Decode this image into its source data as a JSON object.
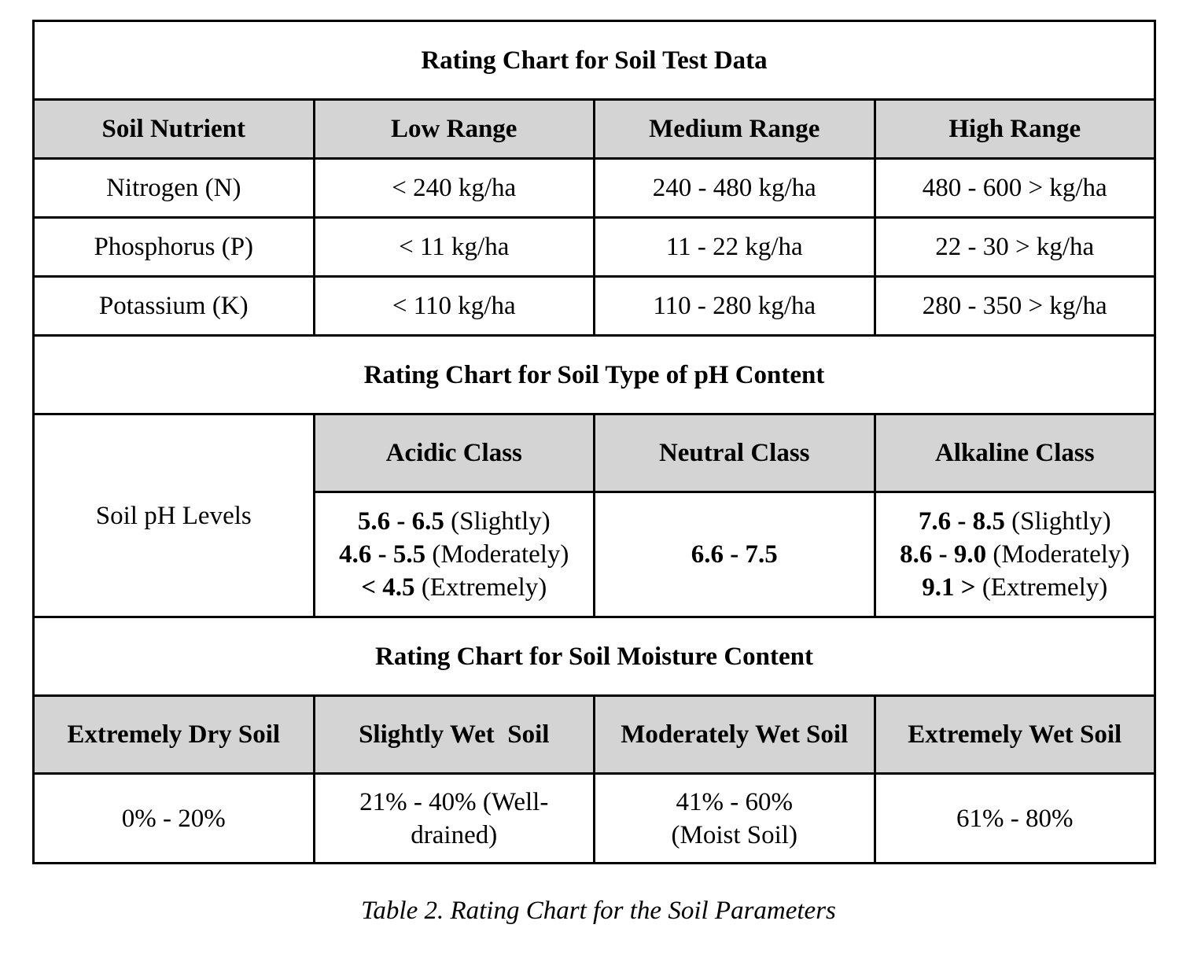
{
  "soil_test": {
    "title": "Rating Chart for Soil Test Data",
    "headers": [
      "Soil Nutrient",
      "Low Range",
      "Medium Range",
      "High Range"
    ],
    "rows": [
      [
        "Nitrogen (N)",
        "< 240 kg/ha",
        "240 - 480 kg/ha",
        "480 - 600 > kg/ha"
      ],
      [
        "Phosphorus (P)",
        "< 11 kg/ha",
        "11 - 22 kg/ha",
        "22 - 30 > kg/ha"
      ],
      [
        "Potassium (K)",
        "< 110 kg/ha",
        "110 - 280 kg/ha",
        "280 - 350 > kg/ha"
      ]
    ]
  },
  "ph": {
    "title": "Rating Chart for Soil Type of pH Content",
    "row_label": "Soil pH Levels",
    "headers": [
      "Acidic Class",
      "Neutral Class",
      "Alkaline Class"
    ],
    "acidic": [
      {
        "range": "5.6 - 6.5",
        "note": "(Slightly)"
      },
      {
        "range": "4.6 - 5.5",
        "note": "(Moderately)"
      },
      {
        "range": "< 4.5",
        "note": "(Extremely)"
      }
    ],
    "neutral": "6.6 - 7.5",
    "alkaline": [
      {
        "range": "7.6 - 8.5",
        "note": "(Slightly)"
      },
      {
        "range": "8.6 - 9.0",
        "note": "(Moderately)"
      },
      {
        "range": "9.1 >",
        "note": "(Extremely)"
      }
    ]
  },
  "moisture": {
    "title": "Rating Chart for Soil Moisture Content",
    "headers": [
      "Extremely Dry Soil",
      "Slightly Wet  Soil",
      "Moderately Wet Soil",
      "Extremely Wet Soil"
    ],
    "values": [
      [
        "0% - 20%"
      ],
      [
        "21% - 40% (Well-",
        "drained)"
      ],
      [
        "41% - 60%",
        "(Moist Soil)"
      ],
      [
        "61% - 80%"
      ]
    ]
  },
  "caption": "Table 2. Rating Chart for the Soil Parameters"
}
